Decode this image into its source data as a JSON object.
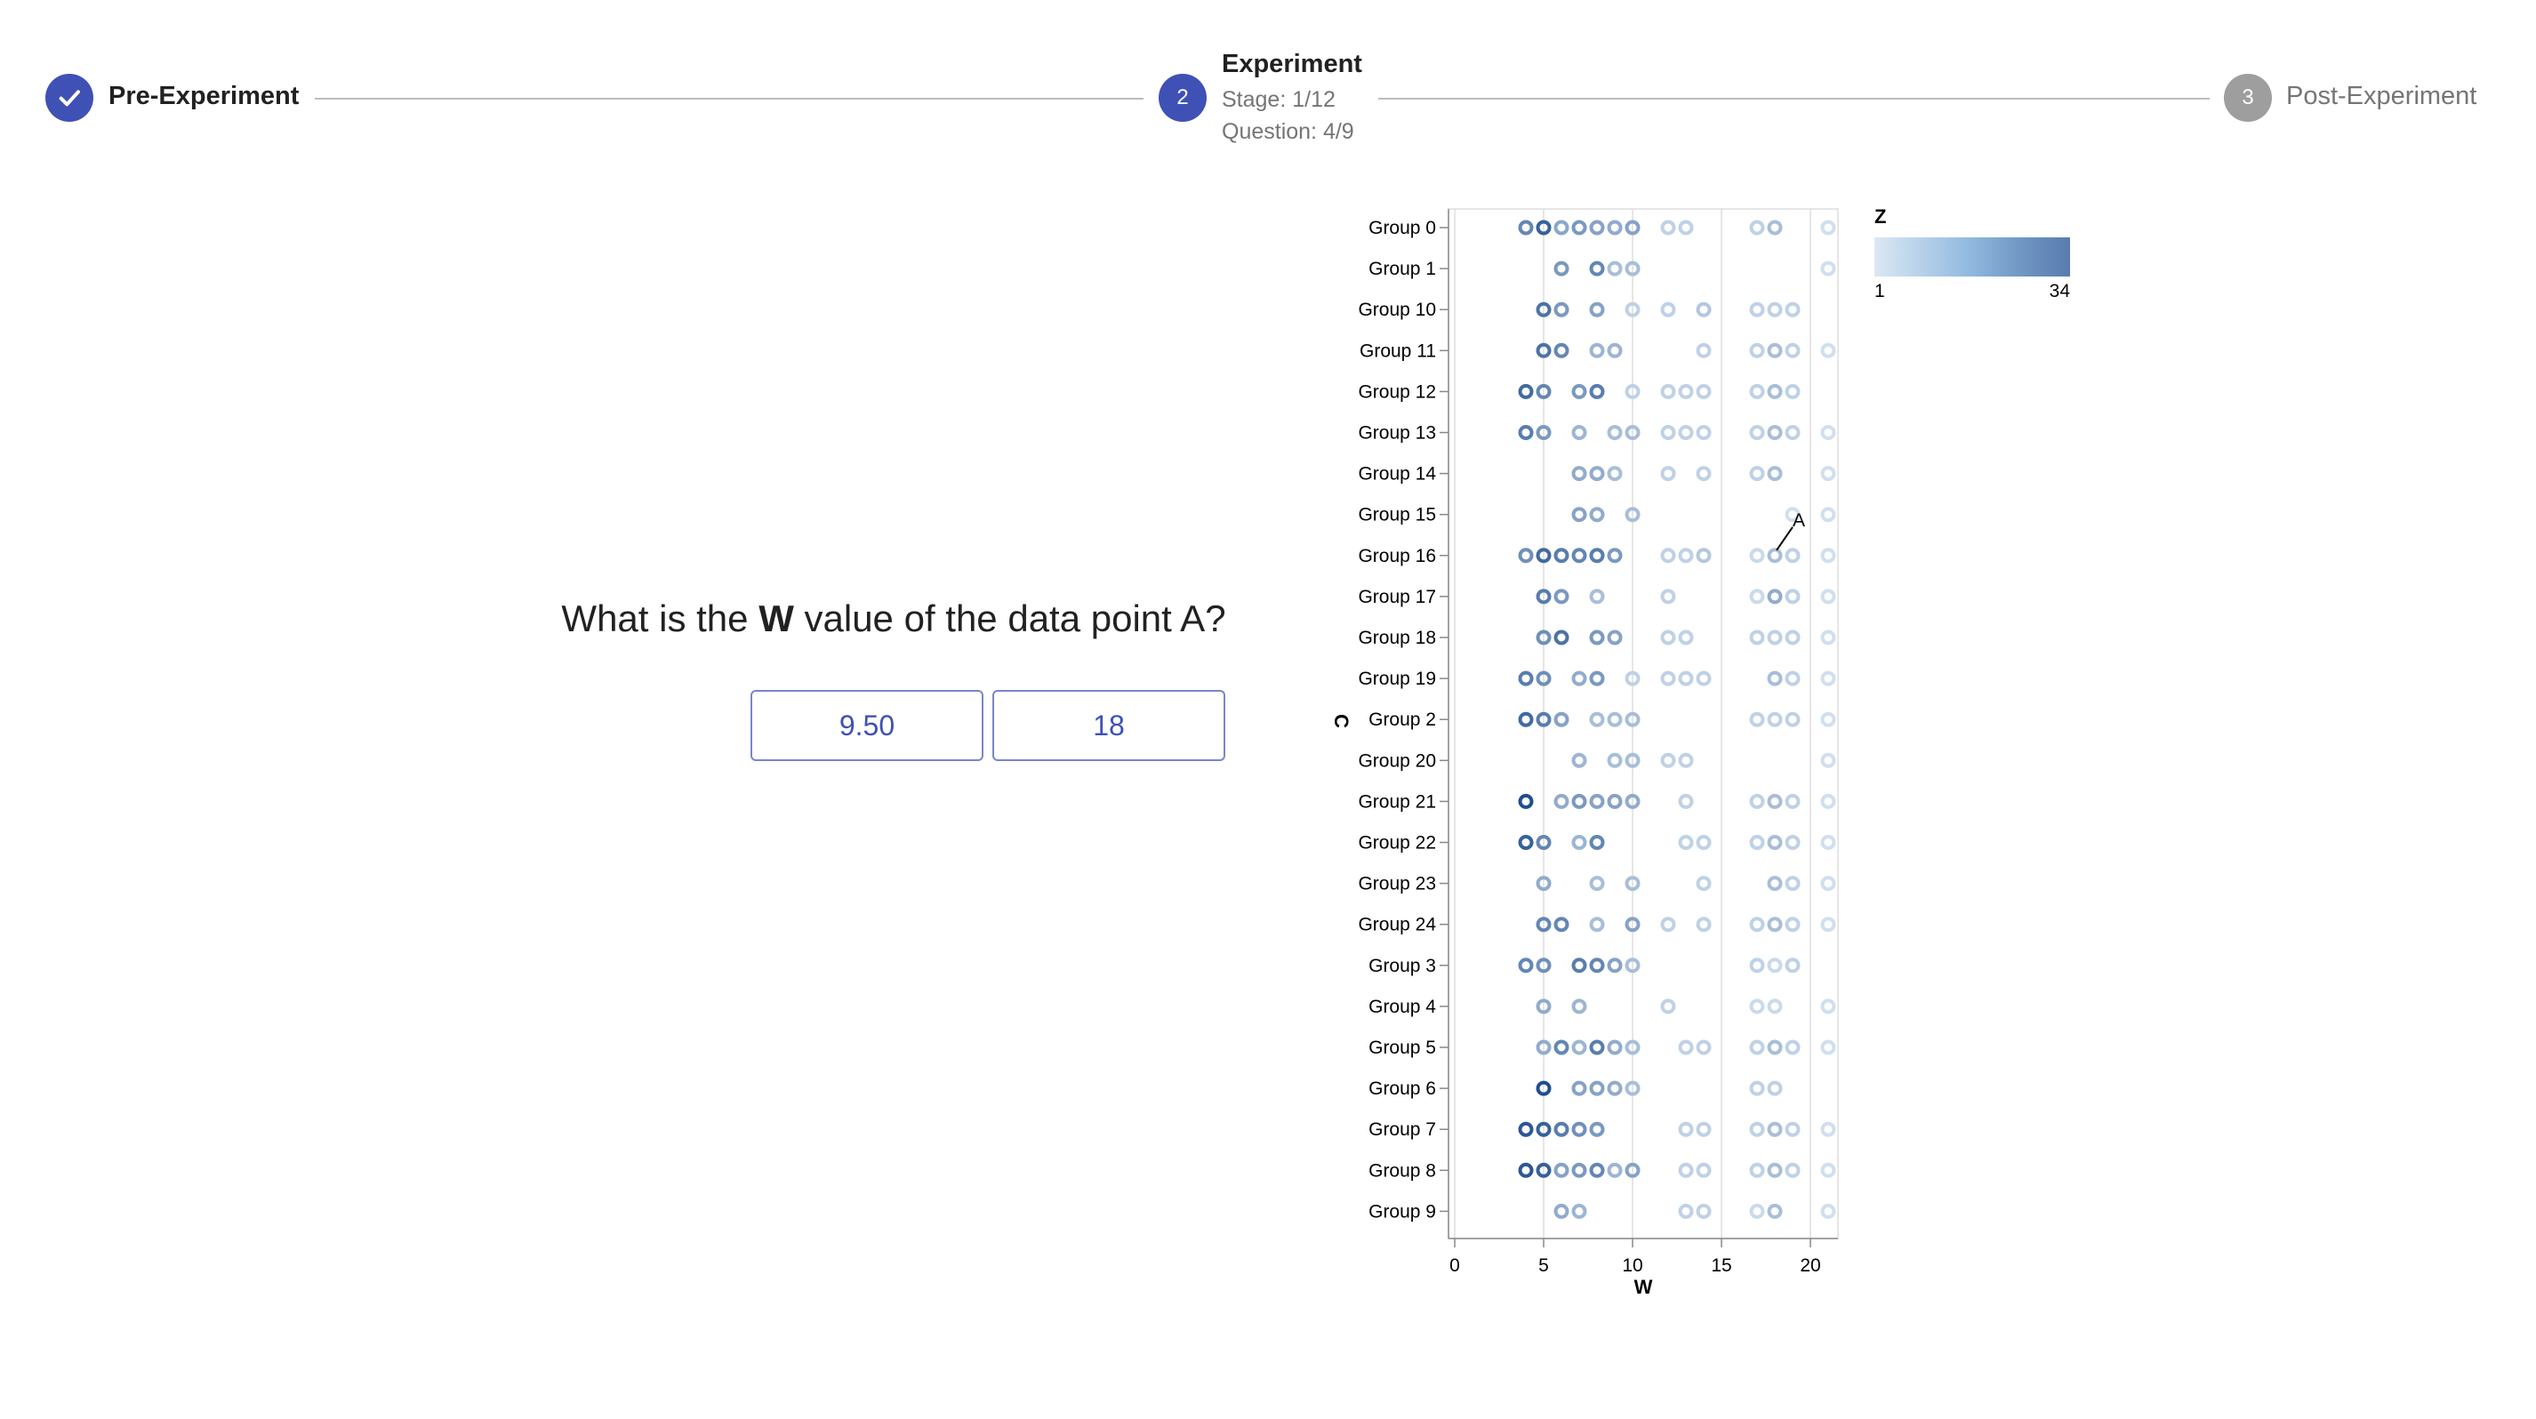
{
  "stepper": {
    "steps": [
      {
        "label": "Pre-Experiment",
        "status": "completed",
        "icon": "check-icon"
      },
      {
        "label": "Experiment",
        "number": "2",
        "status": "active",
        "stage": "Stage: 1/12",
        "question": "Question: 4/9"
      },
      {
        "label": "Post-Experiment",
        "number": "3",
        "status": "inactive"
      }
    ]
  },
  "question": {
    "prefix": "What is the ",
    "variable": "W",
    "suffix": " value of the data point A?"
  },
  "answers": [
    "9.50",
    "18"
  ],
  "colors": {
    "accent": "#3f51b5",
    "inactive": "#9e9e9e",
    "color_low": "#dbe8f4",
    "color_high": "#1f4e8f"
  },
  "chart_data": {
    "type": "scatter",
    "xlabel": "W",
    "ylabel": "C",
    "xlim": [
      0,
      22
    ],
    "xticks": [
      0,
      5,
      10,
      15,
      20
    ],
    "legend": {
      "title": "Z",
      "min": 1,
      "max": 34,
      "placement": "top-right"
    },
    "categories": [
      "Group 0",
      "Group 1",
      "Group 10",
      "Group 11",
      "Group 12",
      "Group 13",
      "Group 14",
      "Group 15",
      "Group 16",
      "Group 17",
      "Group 18",
      "Group 19",
      "Group 2",
      "Group 20",
      "Group 21",
      "Group 22",
      "Group 23",
      "Group 24",
      "Group 3",
      "Group 4",
      "Group 5",
      "Group 6",
      "Group 7",
      "Group 8",
      "Group 9"
    ],
    "annotation": {
      "label": "A",
      "group": "Group 16",
      "w": 18
    },
    "points": [
      {
        "c": "Group 0",
        "w": [
          [
            4,
            22
          ],
          [
            5,
            30
          ],
          [
            6,
            15
          ],
          [
            7,
            18
          ],
          [
            8,
            16
          ],
          [
            9,
            14
          ],
          [
            10,
            16
          ],
          [
            12,
            6
          ],
          [
            13,
            6
          ],
          [
            17,
            6
          ],
          [
            18,
            10
          ],
          [
            21,
            3
          ]
        ]
      },
      {
        "c": "Group 1",
        "w": [
          [
            6,
            18
          ],
          [
            8,
            22
          ],
          [
            9,
            10
          ],
          [
            10,
            10
          ],
          [
            21,
            3
          ]
        ]
      },
      {
        "c": "Group 10",
        "w": [
          [
            5,
            26
          ],
          [
            6,
            18
          ],
          [
            8,
            16
          ],
          [
            10,
            6
          ],
          [
            12,
            6
          ],
          [
            14,
            8
          ],
          [
            17,
            6
          ],
          [
            18,
            6
          ],
          [
            19,
            6
          ]
        ]
      },
      {
        "c": "Group 11",
        "w": [
          [
            5,
            26
          ],
          [
            6,
            22
          ],
          [
            8,
            12
          ],
          [
            9,
            12
          ],
          [
            14,
            6
          ],
          [
            17,
            6
          ],
          [
            18,
            10
          ],
          [
            19,
            6
          ],
          [
            21,
            3
          ]
        ]
      },
      {
        "c": "Group 12",
        "w": [
          [
            4,
            28
          ],
          [
            5,
            22
          ],
          [
            7,
            18
          ],
          [
            8,
            24
          ],
          [
            10,
            6
          ],
          [
            12,
            6
          ],
          [
            13,
            6
          ],
          [
            14,
            6
          ],
          [
            17,
            6
          ],
          [
            18,
            10
          ],
          [
            19,
            6
          ]
        ]
      },
      {
        "c": "Group 13",
        "w": [
          [
            4,
            24
          ],
          [
            5,
            18
          ],
          [
            7,
            12
          ],
          [
            9,
            10
          ],
          [
            10,
            10
          ],
          [
            12,
            6
          ],
          [
            13,
            6
          ],
          [
            14,
            6
          ],
          [
            17,
            6
          ],
          [
            18,
            10
          ],
          [
            19,
            6
          ],
          [
            21,
            3
          ]
        ]
      },
      {
        "c": "Group 14",
        "w": [
          [
            7,
            14
          ],
          [
            8,
            14
          ],
          [
            9,
            10
          ],
          [
            12,
            6
          ],
          [
            14,
            6
          ],
          [
            17,
            6
          ],
          [
            18,
            10
          ],
          [
            21,
            3
          ]
        ]
      },
      {
        "c": "Group 15",
        "w": [
          [
            7,
            16
          ],
          [
            8,
            14
          ],
          [
            10,
            10
          ],
          [
            19,
            3
          ],
          [
            21,
            3
          ]
        ]
      },
      {
        "c": "Group 16",
        "w": [
          [
            4,
            20
          ],
          [
            5,
            28
          ],
          [
            6,
            24
          ],
          [
            7,
            22
          ],
          [
            8,
            24
          ],
          [
            9,
            18
          ],
          [
            12,
            6
          ],
          [
            13,
            6
          ],
          [
            14,
            8
          ],
          [
            17,
            4
          ],
          [
            18,
            10
          ],
          [
            19,
            6
          ],
          [
            21,
            3
          ]
        ]
      },
      {
        "c": "Group 17",
        "w": [
          [
            5,
            24
          ],
          [
            6,
            18
          ],
          [
            8,
            10
          ],
          [
            12,
            6
          ],
          [
            17,
            4
          ],
          [
            18,
            14
          ],
          [
            19,
            6
          ],
          [
            21,
            3
          ]
        ]
      },
      {
        "c": "Group 18",
        "w": [
          [
            5,
            20
          ],
          [
            6,
            26
          ],
          [
            8,
            18
          ],
          [
            9,
            16
          ],
          [
            12,
            6
          ],
          [
            13,
            6
          ],
          [
            17,
            6
          ],
          [
            18,
            6
          ],
          [
            19,
            6
          ],
          [
            21,
            3
          ]
        ]
      },
      {
        "c": "Group 19",
        "w": [
          [
            4,
            24
          ],
          [
            5,
            20
          ],
          [
            7,
            14
          ],
          [
            8,
            18
          ],
          [
            10,
            6
          ],
          [
            12,
            6
          ],
          [
            13,
            6
          ],
          [
            14,
            6
          ],
          [
            18,
            10
          ],
          [
            19,
            6
          ],
          [
            21,
            3
          ]
        ]
      },
      {
        "c": "Group 2",
        "w": [
          [
            4,
            28
          ],
          [
            5,
            24
          ],
          [
            6,
            16
          ],
          [
            8,
            10
          ],
          [
            9,
            10
          ],
          [
            10,
            10
          ],
          [
            17,
            6
          ],
          [
            18,
            6
          ],
          [
            19,
            6
          ],
          [
            21,
            3
          ]
        ]
      },
      {
        "c": "Group 20",
        "w": [
          [
            7,
            12
          ],
          [
            9,
            10
          ],
          [
            10,
            10
          ],
          [
            12,
            6
          ],
          [
            13,
            6
          ],
          [
            21,
            3
          ]
        ]
      },
      {
        "c": "Group 21",
        "w": [
          [
            4,
            34
          ],
          [
            6,
            14
          ],
          [
            7,
            18
          ],
          [
            8,
            16
          ],
          [
            9,
            16
          ],
          [
            10,
            14
          ],
          [
            13,
            6
          ],
          [
            17,
            6
          ],
          [
            18,
            10
          ],
          [
            19,
            6
          ],
          [
            21,
            3
          ]
        ]
      },
      {
        "c": "Group 22",
        "w": [
          [
            4,
            30
          ],
          [
            5,
            22
          ],
          [
            7,
            12
          ],
          [
            8,
            22
          ],
          [
            13,
            6
          ],
          [
            14,
            6
          ],
          [
            17,
            6
          ],
          [
            18,
            10
          ],
          [
            19,
            6
          ],
          [
            21,
            3
          ]
        ]
      },
      {
        "c": "Group 23",
        "w": [
          [
            5,
            14
          ],
          [
            8,
            10
          ],
          [
            10,
            10
          ],
          [
            14,
            6
          ],
          [
            18,
            10
          ],
          [
            19,
            6
          ],
          [
            21,
            3
          ]
        ]
      },
      {
        "c": "Group 24",
        "w": [
          [
            5,
            22
          ],
          [
            6,
            22
          ],
          [
            8,
            10
          ],
          [
            10,
            16
          ],
          [
            12,
            6
          ],
          [
            14,
            6
          ],
          [
            17,
            6
          ],
          [
            18,
            10
          ],
          [
            19,
            6
          ],
          [
            21,
            3
          ]
        ]
      },
      {
        "c": "Group 3",
        "w": [
          [
            4,
            22
          ],
          [
            5,
            20
          ],
          [
            7,
            24
          ],
          [
            8,
            22
          ],
          [
            9,
            16
          ],
          [
            10,
            10
          ],
          [
            17,
            6
          ],
          [
            18,
            4
          ],
          [
            19,
            6
          ]
        ]
      },
      {
        "c": "Group 4",
        "w": [
          [
            5,
            14
          ],
          [
            7,
            12
          ],
          [
            12,
            6
          ],
          [
            17,
            4
          ],
          [
            18,
            4
          ],
          [
            21,
            3
          ]
        ]
      },
      {
        "c": "Group 5",
        "w": [
          [
            5,
            14
          ],
          [
            6,
            22
          ],
          [
            7,
            12
          ],
          [
            8,
            24
          ],
          [
            9,
            14
          ],
          [
            10,
            10
          ],
          [
            13,
            6
          ],
          [
            14,
            6
          ],
          [
            17,
            6
          ],
          [
            18,
            10
          ],
          [
            19,
            6
          ],
          [
            21,
            3
          ]
        ]
      },
      {
        "c": "Group 6",
        "w": [
          [
            5,
            34
          ],
          [
            7,
            16
          ],
          [
            8,
            16
          ],
          [
            9,
            14
          ],
          [
            10,
            10
          ],
          [
            17,
            6
          ],
          [
            18,
            6
          ]
        ]
      },
      {
        "c": "Group 7",
        "w": [
          [
            4,
            32
          ],
          [
            5,
            30
          ],
          [
            6,
            24
          ],
          [
            7,
            20
          ],
          [
            8,
            18
          ],
          [
            13,
            6
          ],
          [
            14,
            6
          ],
          [
            17,
            6
          ],
          [
            18,
            10
          ],
          [
            19,
            6
          ],
          [
            21,
            3
          ]
        ]
      },
      {
        "c": "Group 8",
        "w": [
          [
            4,
            32
          ],
          [
            5,
            30
          ],
          [
            6,
            16
          ],
          [
            7,
            18
          ],
          [
            8,
            22
          ],
          [
            9,
            12
          ],
          [
            10,
            16
          ],
          [
            13,
            6
          ],
          [
            14,
            6
          ],
          [
            17,
            6
          ],
          [
            18,
            10
          ],
          [
            19,
            6
          ],
          [
            21,
            3
          ]
        ]
      },
      {
        "c": "Group 9",
        "w": [
          [
            6,
            14
          ],
          [
            7,
            12
          ],
          [
            13,
            6
          ],
          [
            14,
            6
          ],
          [
            17,
            4
          ],
          [
            18,
            10
          ],
          [
            21,
            3
          ]
        ]
      }
    ]
  }
}
